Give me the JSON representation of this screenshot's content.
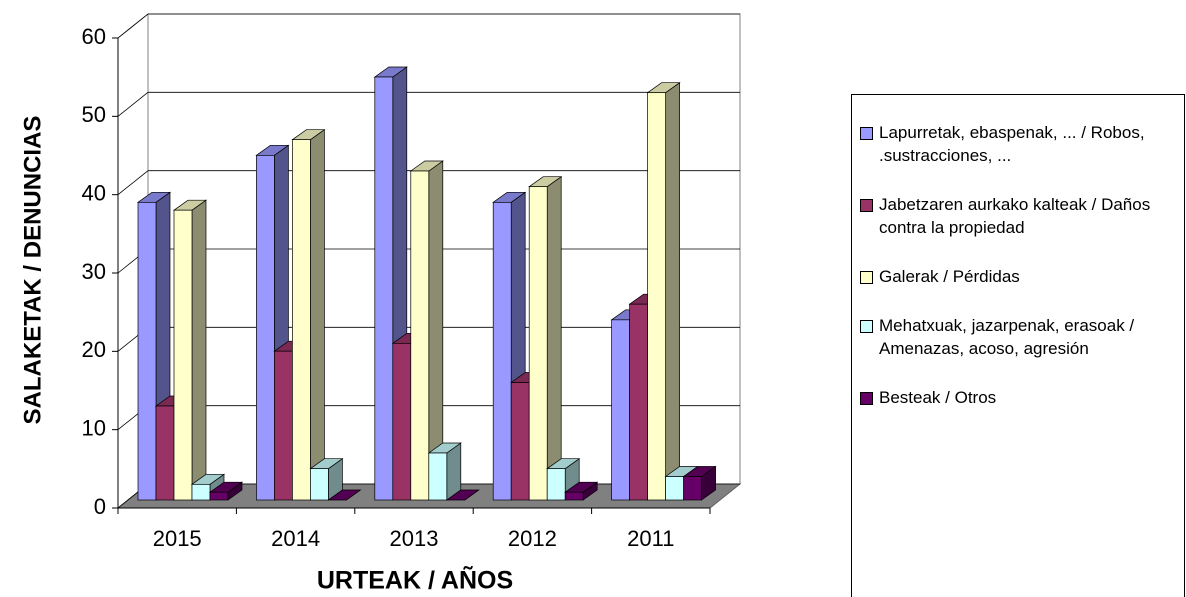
{
  "chart_data": {
    "type": "bar3d",
    "x_label": "URTEAK / AÑOS",
    "y_label": "SALAKETAK / DENUNCIAS",
    "categories": [
      "2015",
      "2014",
      "2013",
      "2012",
      "2011"
    ],
    "series": [
      {
        "name": "Lapurretak, ebaspenak, ... / Robos, .sustracciones, ...",
        "color": "#9999ff",
        "values": [
          38,
          44,
          54,
          38,
          23
        ]
      },
      {
        "name": "Jabetzaren aurkako kalteak / Daños  contra la propiedad",
        "color": "#993366",
        "values": [
          12,
          19,
          20,
          15,
          25
        ]
      },
      {
        "name": "Galerak / Pérdidas",
        "color": "#ffffcc",
        "values": [
          37,
          46,
          42,
          40,
          52
        ]
      },
      {
        "name": "Mehatxuak, jazarpenak, erasoak / Amenazas, acoso, agresión",
        "color": "#ccffff",
        "values": [
          2,
          4,
          6,
          4,
          3
        ]
      },
      {
        "name": "Besteak / Otros",
        "color": "#660066",
        "values": [
          1,
          0,
          0,
          1,
          3
        ]
      }
    ],
    "ylim": [
      0,
      60
    ],
    "yticks": [
      0,
      10,
      20,
      30,
      40,
      50,
      60
    ],
    "grid": true
  }
}
